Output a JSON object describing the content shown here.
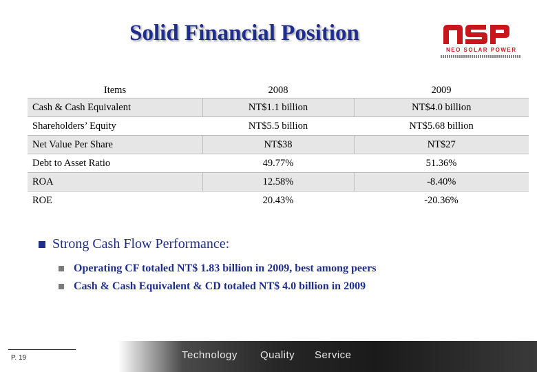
{
  "title": "Solid Financial Position",
  "logo": {
    "mark": "NSP",
    "tagline": "NEO SOLAR POWER"
  },
  "table": {
    "headers": [
      "Items",
      "2008",
      "2009"
    ],
    "rows": [
      {
        "label": "Cash & Cash Equivalent",
        "y2008": "NT$1.1 billion",
        "y2009": "NT$4.0 billion"
      },
      {
        "label": "Shareholders’ Equity",
        "y2008": "NT$5.5 billion",
        "y2009": "NT$5.68 billion"
      },
      {
        "label": "Net Value Per Share",
        "y2008": "NT$38",
        "y2009": "NT$27"
      },
      {
        "label": "Debt to Asset Ratio",
        "y2008": "49.77%",
        "y2009": "51.36%"
      },
      {
        "label": "ROA",
        "y2008": "12.58%",
        "y2009": "-8.40%"
      },
      {
        "label": "ROE",
        "y2008": "20.43%",
        "y2009": "-20.36%"
      }
    ]
  },
  "bullet": {
    "heading": "Strong Cash Flow Performance:",
    "items": [
      "Operating CF totaled NT$ 1.83 billion in 2009, best among peers",
      "Cash & Cash Equivalent & CD totaled NT$ 4.0 billion in 2009"
    ]
  },
  "footer": {
    "page": "P. 19",
    "words": [
      "Technology",
      "Quality",
      "Service"
    ]
  },
  "colors": {
    "title": "#1f2d8c",
    "logo": "#c8161d",
    "row_shade": "#e6e6e6"
  }
}
